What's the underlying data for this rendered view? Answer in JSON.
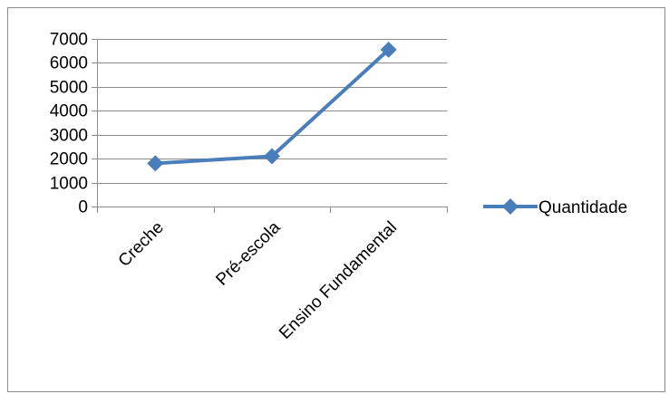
{
  "chart_data": {
    "type": "line",
    "categories": [
      "Creche",
      "Pré-escola",
      "Ensino Fundamental"
    ],
    "series": [
      {
        "name": "Quantidade",
        "values": [
          1800,
          2100,
          6550
        ],
        "color": "#4a7ebb",
        "marker": "diamond"
      }
    ],
    "y_ticks": [
      "0",
      "1000",
      "2000",
      "3000",
      "4000",
      "5000",
      "6000",
      "7000"
    ],
    "ylim": [
      0,
      7000
    ],
    "grid": true,
    "legend_position": "right"
  }
}
